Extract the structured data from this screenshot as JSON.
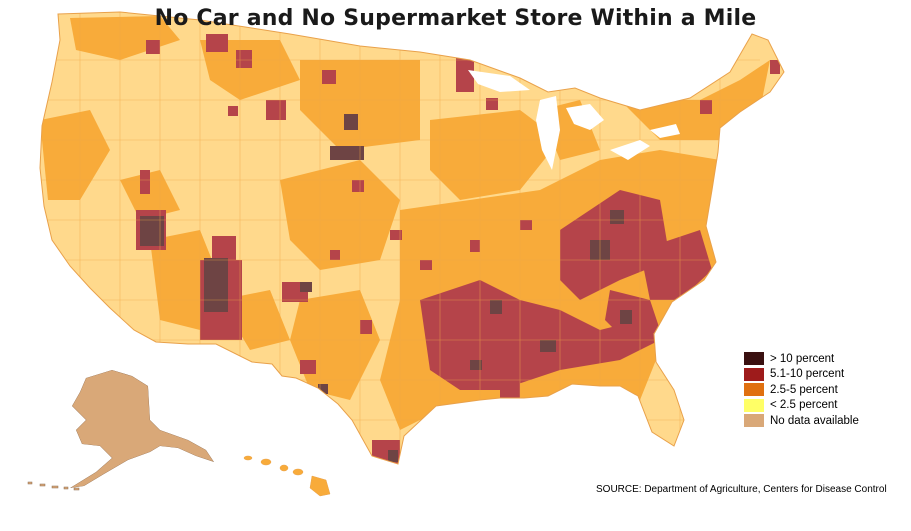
{
  "title": "No Car and No Supermarket Store Within a Mile",
  "legend": {
    "items": [
      {
        "label": "> 10 percent",
        "color": "#3a1010"
      },
      {
        "label": "5.1-10 percent",
        "color": "#9e1b1b"
      },
      {
        "label": "2.5-5 percent",
        "color": "#e07010"
      },
      {
        "label": "< 2.5 percent",
        "color": "#ffff66"
      },
      {
        "label": "No data available",
        "color": "#d9a878"
      }
    ]
  },
  "source": "SOURCE: Department of Agriculture, Centers for Disease Control",
  "colors": {
    "light": "#ffd98c",
    "medium": "#f8ab3a",
    "high": "#b5444a",
    "veryhigh": "#6e4444",
    "nodata": "#d9a878",
    "border": "#e9a14a"
  }
}
